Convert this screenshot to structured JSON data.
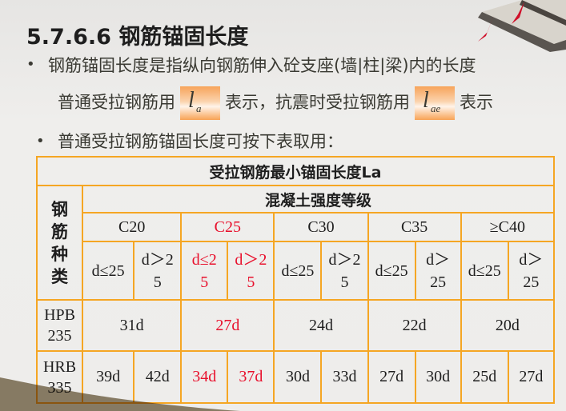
{
  "title": "5.7.6.6 钢筋锚固长度",
  "bullets": [
    {
      "text": "钢筋锚固长度是指纵向钢筋伸入砼支座(墙|柱|梁)内的长度"
    },
    {
      "prefix": "普通受拉钢筋用",
      "symbol1": {
        "main": "l",
        "sub": "a"
      },
      "middle": "表示，抗震时受拉钢筋用",
      "symbol2": {
        "main": "l",
        "sub": "ae"
      },
      "suffix": "表示"
    },
    {
      "text": "普通受拉钢筋锚固长度可按下表取用："
    }
  ],
  "table": {
    "title": "受拉钢筋最小锚固长度La",
    "row_header": "钢筋种类",
    "group_header": "混凝土强度等级",
    "grades": [
      "C20",
      "C25",
      "C30",
      "C35",
      "≥C40"
    ],
    "diameters": [
      "d≤25",
      "d＞25",
      "d≤25",
      "d＞25",
      "d≤25",
      "d＞25",
      "d≤25",
      "d＞25",
      "d≤25",
      "d＞25"
    ],
    "rows": [
      {
        "type": "HPB 235",
        "values": [
          "31d",
          "27d",
          "24d",
          "22d",
          "20d"
        ]
      },
      {
        "type": "HRB 335",
        "values": [
          "39d",
          "42d",
          "34d",
          "37d",
          "30d",
          "33d",
          "27d",
          "30d",
          "25d",
          "27d"
        ]
      }
    ],
    "highlight_color": "#e8102c",
    "border_color": "#f5a623"
  }
}
